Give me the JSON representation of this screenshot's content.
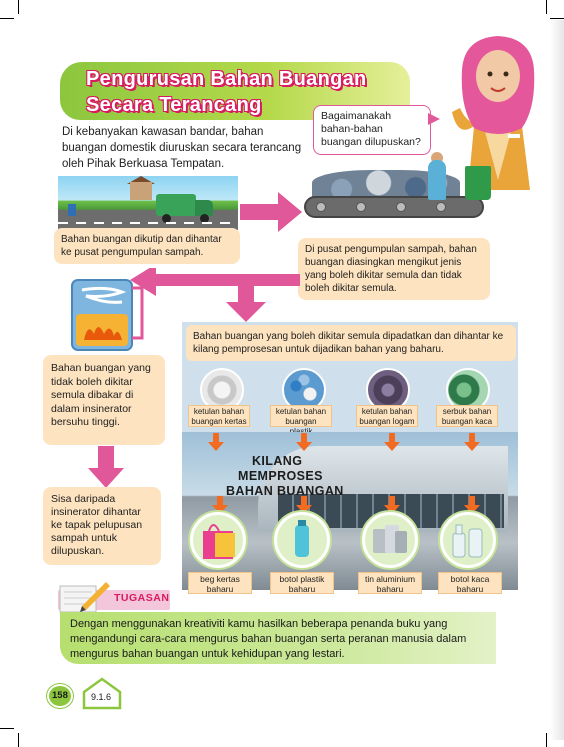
{
  "title": {
    "line1": "Pengurusan Bahan Buangan",
    "line2": "Secara Terancang"
  },
  "intro": "Di kebanyakan kawasan bandar, bahan buangan domestik diuruskan secara terancang oleh Pihak Berkuasa Tempatan.",
  "speech_bubble": "Bagaimanakah bahan-bahan buangan dilupuskan?",
  "step_collect": "Bahan buangan dikutip dan dihantar ke pusat pengumpulan sampah.",
  "step_sort": "Di pusat pengumpulan sampah, bahan buangan diasingkan mengikut jenis yang boleh dikitar semula dan tidak boleh dikitar semula.",
  "step_incinerate": "Bahan buangan yang tidak boleh dikitar semula dibakar di dalam insinerator bersuhu tinggi.",
  "step_ash": "Sisa daripada insinerator dihantar ke tapak pelupusan sampah untuk dilupuskan.",
  "step_recycle": "Bahan buangan yang boleh dikitar semula dipadatkan dan dihantar ke kilang pemprosesan untuk dijadikan bahan yang baharu.",
  "materials": [
    {
      "label": "ketulan bahan buangan kertas",
      "color": "#d9d9d9"
    },
    {
      "label": "ketulan bahan buangan plastik",
      "color": "#6aa4d6"
    },
    {
      "label": "ketulan bahan buangan logam",
      "color": "#5a4d6b"
    },
    {
      "label": "serbuk bahan buangan kaca",
      "color": "#3f8a5a"
    }
  ],
  "factory": {
    "line1": "KILANG",
    "line2": "MEMPROSES",
    "line3": "BAHAN BUANGAN"
  },
  "products": [
    {
      "label": "beg kertas baharu"
    },
    {
      "label": "botol plastik baharu"
    },
    {
      "label": "tin aluminium baharu"
    },
    {
      "label": "botol kaca baharu"
    }
  ],
  "tugasan": {
    "label": "TUGASAN",
    "text": "Dengan menggunakan kreativiti kamu hasilkan beberapa penanda buku yang mengandungi cara-cara mengurus bahan buangan serta peranan manusia dalam mengurus bahan buangan untuk kehidupan yang lestari."
  },
  "footer": {
    "page_number": "158",
    "standard_code": "9.1.6"
  },
  "colors": {
    "accent_pink": "#e0579a",
    "accent_green": "#8cc63f",
    "box_orange": "#fde3bf",
    "arrow_orange": "#f26b21"
  }
}
